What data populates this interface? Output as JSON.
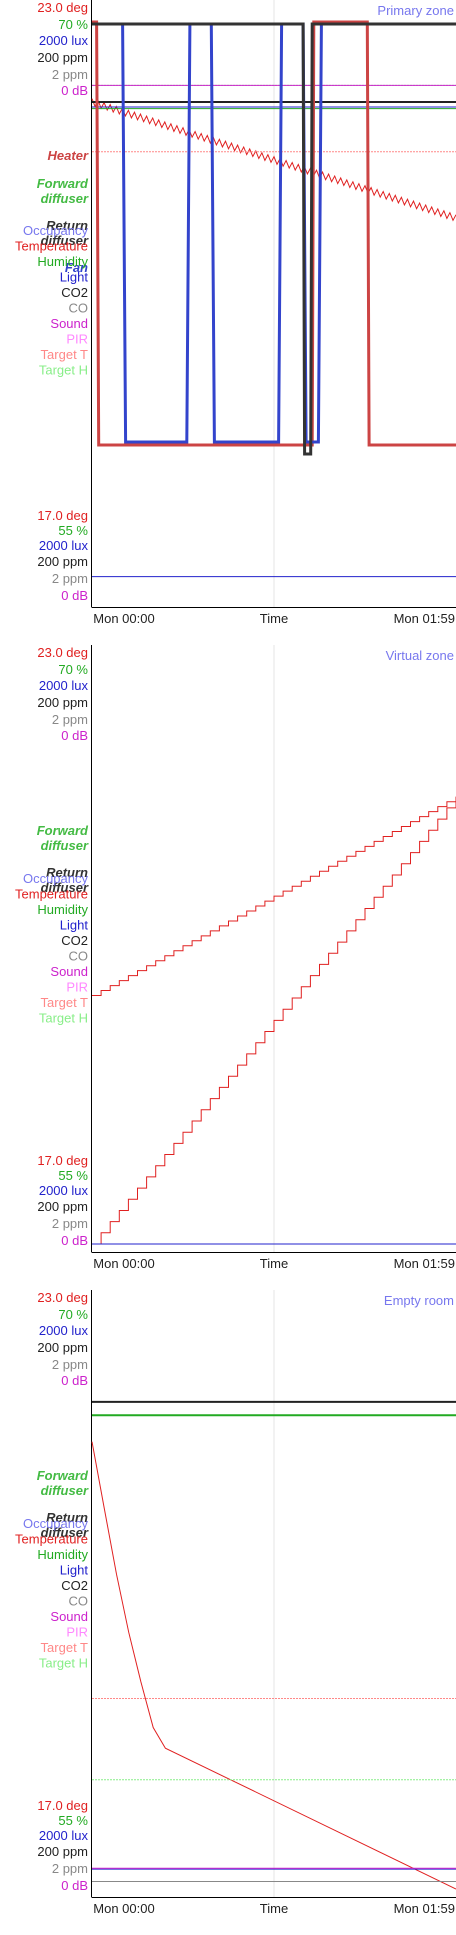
{
  "colors": {
    "temperature": "#e02020",
    "humidity": "#22aa22",
    "light": "#2222cc",
    "co2": "#222222",
    "co": "#888888",
    "sound": "#cc22cc",
    "pir": "#ff88ff",
    "target_t": "#ff8888",
    "target_h": "#88ee88",
    "occupancy": "#7777ee",
    "heater": "#cc4444",
    "forward_diffuser": "#44bb44",
    "return_diffuser": "#333333",
    "fan": "#3344cc",
    "grid": "#e4e4e4",
    "axis": "#000000"
  },
  "chart_data": [
    {
      "type": "line",
      "title": "Primary zone",
      "xlabel": "Time",
      "x_ticks": [
        "Mon 00:00",
        "Mon 01:59"
      ],
      "x_range_minutes": [
        0,
        119
      ],
      "ticks_top": [
        "23.0 deg",
        "70 %",
        "2000 lux",
        "200 ppm",
        "2 ppm",
        "0 dB"
      ],
      "ticks_bottom": [
        "17.0 deg",
        "55 %",
        "2000 lux",
        "200 ppm",
        "2 ppm",
        "0 dB"
      ],
      "legend": [
        "Occupancy",
        "Temperature",
        "Humidity",
        "Light",
        "CO2",
        "CO",
        "Sound",
        "PIR",
        "Target T",
        "Target H"
      ],
      "actuators": [
        "Heater",
        "Forward diffuser",
        "Return diffuser",
        "Fan"
      ],
      "series": [
        {
          "name": "Temperature",
          "key": "temperature",
          "unit": "deg",
          "range": [
            17.0,
            23.0
          ],
          "noisy": true,
          "x": [
            0,
            119
          ],
          "y": [
            23.0,
            21.6
          ]
        },
        {
          "name": "Target T",
          "key": "target_t",
          "unit": "deg",
          "range": [
            17.0,
            23.0
          ],
          "x": [
            0,
            119
          ],
          "y": [
            22.4,
            22.4
          ]
        },
        {
          "name": "Humidity",
          "key": "humidity",
          "unit": "%",
          "range": [
            55,
            70
          ],
          "x": [
            0,
            119
          ],
          "y": [
            69.8,
            69.8
          ]
        },
        {
          "name": "Target H",
          "key": "target_h",
          "unit": "%",
          "range": [
            55,
            70
          ],
          "x": [
            0,
            119
          ],
          "y": [
            70.5,
            70.5
          ]
        },
        {
          "name": "Light",
          "key": "light",
          "unit": "lux",
          "range": [
            0,
            2000
          ],
          "x": [
            0,
            119
          ],
          "y": [
            1980,
            1980
          ]
        },
        {
          "name": "Light (lower)",
          "key": "light",
          "unit": "lux",
          "range": [
            0,
            2000
          ],
          "lower": true,
          "x": [
            0,
            119
          ],
          "y": [
            90,
            90
          ]
        },
        {
          "name": "CO2",
          "key": "co2",
          "unit": "ppm",
          "range": [
            0,
            200
          ],
          "x": [
            0,
            119
          ],
          "y": [
            200,
            200
          ]
        },
        {
          "name": "Sound",
          "key": "sound",
          "unit": "dB",
          "range": [
            0,
            60
          ],
          "x": [
            0,
            119
          ],
          "y": [
            62,
            62
          ]
        }
      ],
      "actuator_series": [
        {
          "name": "Heater",
          "key": "heater",
          "x": [
            0,
            1.5,
            2.2,
            72,
            72.5,
            90,
            90.6,
            119
          ],
          "y": [
            1,
            1,
            0,
            0,
            1,
            1,
            0,
            0
          ]
        },
        {
          "name": "Fan",
          "key": "fan",
          "x": [
            0,
            10,
            11,
            31,
            32,
            39,
            40,
            61,
            62,
            69,
            70,
            74,
            75,
            119
          ],
          "y": [
            1,
            1,
            0,
            0,
            1,
            1,
            0,
            0,
            1,
            1,
            0,
            0,
            1,
            1
          ]
        },
        {
          "name": "Return diffuser",
          "key": "return_diffuser",
          "x": [
            0,
            69,
            69.5,
            71.5,
            72,
            119
          ],
          "y": [
            1,
            1,
            0,
            0,
            1,
            1
          ]
        }
      ]
    },
    {
      "type": "line",
      "title": "Virtual zone",
      "xlabel": "Time",
      "x_ticks": [
        "Mon 00:00",
        "Mon 01:59"
      ],
      "x_range_minutes": [
        0,
        119
      ],
      "ticks_top": [
        "23.0 deg",
        "70 %",
        "2000 lux",
        "200 ppm",
        "2 ppm",
        "0 dB"
      ],
      "ticks_bottom": [
        "17.0 deg",
        "55 %",
        "2000 lux",
        "200 ppm",
        "2 ppm",
        "0 dB"
      ],
      "legend": [
        "Occupancy",
        "Temperature",
        "Humidity",
        "Light",
        "CO2",
        "CO",
        "Sound",
        "PIR",
        "Target T",
        "Target H"
      ],
      "actuators": [
        "Forward diffuser",
        "Return diffuser"
      ],
      "series": [
        {
          "name": "Temperature",
          "key": "temperature",
          "unit": "deg",
          "range": [
            17.0,
            23.0
          ],
          "stepped": true,
          "x": [
            0,
            119
          ],
          "y": [
            20.0,
            22.4
          ]
        },
        {
          "name": "Temperature",
          "key": "temperature",
          "unit": "deg",
          "range": [
            17.0,
            23.0
          ],
          "stepped": true,
          "x": [
            0,
            119
          ],
          "y": [
            17.0,
            22.4
          ]
        },
        {
          "name": "Light",
          "key": "light",
          "unit": "lux",
          "range": [
            0,
            2000
          ],
          "x": [
            0,
            119
          ],
          "y": [
            0,
            0
          ]
        }
      ]
    },
    {
      "type": "line",
      "title": "Empty room",
      "xlabel": "Time",
      "x_ticks": [
        "Mon 00:00",
        "Mon 01:59"
      ],
      "x_range_minutes": [
        0,
        119
      ],
      "ticks_top": [
        "23.0 deg",
        "70 %",
        "2000 lux",
        "200 ppm",
        "2 ppm",
        "0 dB"
      ],
      "ticks_bottom": [
        "17.0 deg",
        "55 %",
        "2000 lux",
        "200 ppm",
        "2 ppm",
        "0 dB"
      ],
      "legend": [
        "Occupancy",
        "Temperature",
        "Humidity",
        "Light",
        "CO2",
        "CO",
        "Sound",
        "PIR",
        "Target T",
        "Target H"
      ],
      "actuators": [
        "Forward diffuser",
        "Return diffuser"
      ],
      "series": [
        {
          "name": "Temperature",
          "key": "temperature",
          "unit": "deg",
          "range": [
            17.0,
            23.0
          ],
          "x": [
            0,
            4,
            8,
            12,
            16,
            20,
            24,
            119
          ],
          "y": [
            22.4,
            21.6,
            20.8,
            20.1,
            19.5,
            18.95,
            18.7,
            17.0
          ]
        },
        {
          "name": "Target T",
          "key": "target_t",
          "unit": "deg",
          "range": [
            17.0,
            23.0
          ],
          "x": [
            0,
            119
          ],
          "y": [
            19.3,
            19.3
          ]
        },
        {
          "name": "Target H",
          "key": "target_h",
          "unit": "%",
          "range": [
            55,
            70
          ],
          "x": [
            0,
            119
          ],
          "y": [
            58.3,
            58.3
          ]
        },
        {
          "name": "Humidity",
          "key": "humidity",
          "unit": "%",
          "range": [
            55,
            70
          ],
          "x": [
            0,
            119
          ],
          "y": [
            69.3,
            69.3
          ]
        },
        {
          "name": "CO2",
          "key": "co2",
          "unit": "ppm",
          "range": [
            0,
            200
          ],
          "x": [
            0,
            119
          ],
          "y": [
            196,
            196
          ]
        },
        {
          "name": "Light",
          "key": "light",
          "unit": "lux",
          "range": [
            0,
            2000
          ],
          "x": [
            0,
            119
          ],
          "y": [
            80,
            80
          ]
        },
        {
          "name": "Sound",
          "key": "sound",
          "unit": "dB",
          "range": [
            0,
            60
          ],
          "x": [
            0,
            119
          ],
          "y": [
            2.5,
            2.5
          ]
        },
        {
          "name": "CO",
          "key": "co",
          "unit": "ppm",
          "range": [
            0,
            2
          ],
          "x": [
            0,
            119
          ],
          "y": [
            0.03,
            0.03
          ]
        }
      ]
    }
  ]
}
